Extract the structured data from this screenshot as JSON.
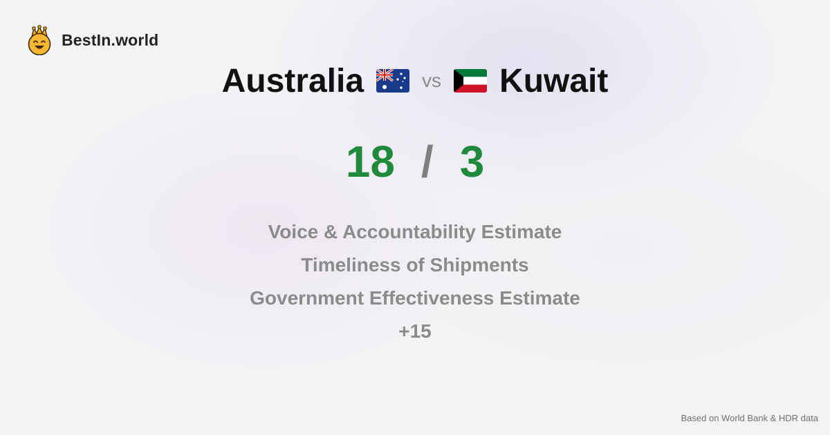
{
  "brand": {
    "name": "BestIn.world",
    "logo_icon": "crown-smiley-icon"
  },
  "comparison": {
    "left_country": "Australia",
    "right_country": "Kuwait",
    "vs_label": "vs",
    "left_flag_icon": "australia-flag-icon",
    "right_flag_icon": "kuwait-flag-icon"
  },
  "score": {
    "left": "18",
    "separator": "/",
    "right": "3"
  },
  "metrics": [
    "Voice & Accountability Estimate",
    "Timeliness of Shipments",
    "Government Effectiveness Estimate",
    "+15"
  ],
  "footer": {
    "source": "Based on World Bank & HDR data"
  },
  "colors": {
    "score": "#1f8a3b",
    "metric_text": "#8b8b8b",
    "title_text": "#111111"
  }
}
